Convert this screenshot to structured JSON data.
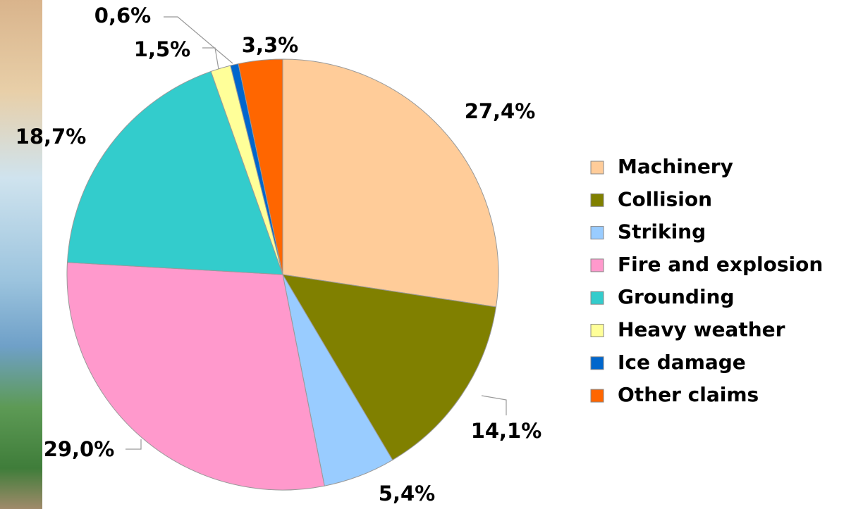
{
  "chart_data": {
    "type": "pie",
    "categories": [
      "Machinery",
      "Collision",
      "Striking",
      "Fire and explosion",
      "Grounding",
      "Heavy weather",
      "Ice damage",
      "Other claims"
    ],
    "values": [
      27.4,
      14.1,
      5.4,
      29.0,
      18.7,
      1.5,
      0.6,
      3.3
    ],
    "value_labels": [
      "27,4%",
      "14,1%",
      "5,4%",
      "29,0%",
      "18,7%",
      "1,5%",
      "0,6%",
      "3,3%"
    ],
    "colors": [
      "#FFCC99",
      "#808000",
      "#99CCFF",
      "#FF99CC",
      "#33CCCC",
      "#FFFF99",
      "#0066CC",
      "#FF6600"
    ],
    "legend": "right"
  }
}
